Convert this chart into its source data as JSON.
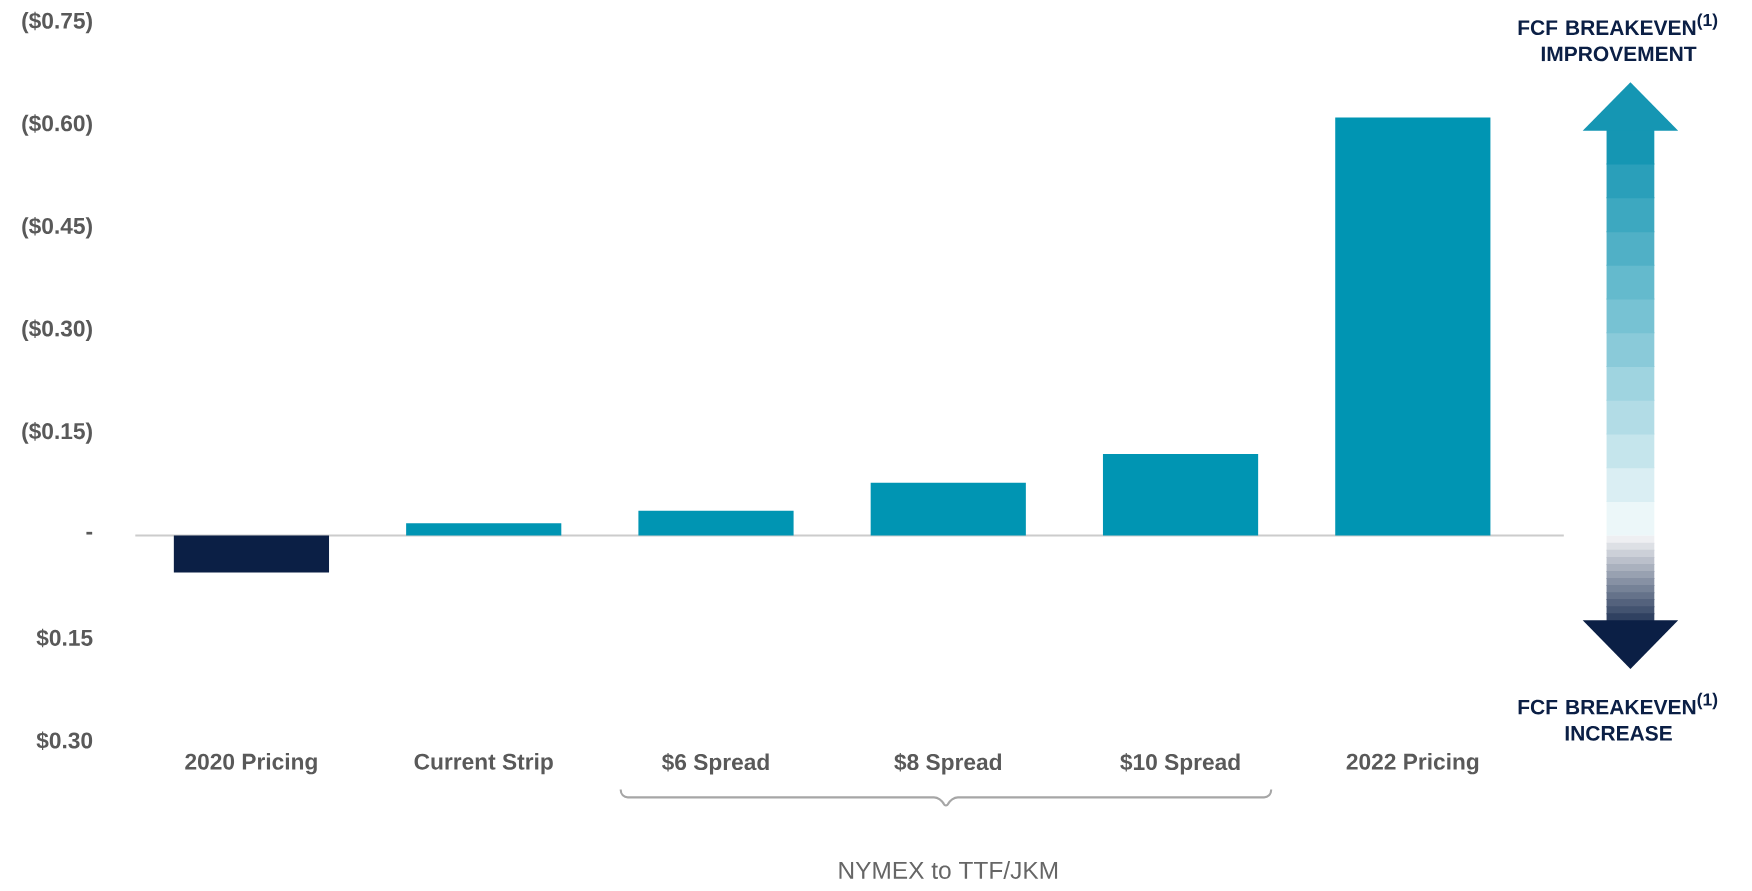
{
  "chart_data": {
    "type": "bar",
    "categories": [
      "2020 Pricing",
      "Current Strip",
      "$6 Spread",
      "$8 Spread",
      "$10 Spread",
      "2022 Pricing"
    ],
    "values": [
      0.054,
      -0.018,
      -0.036,
      -0.077,
      -0.119,
      -0.611
    ],
    "colors": [
      "#0b1f45",
      "#0095b3",
      "#0095b3",
      "#0095b3",
      "#0095b3",
      "#0095b3"
    ],
    "ylim": [
      0.3,
      -0.75
    ],
    "yticks": [
      {
        "value": -0.75,
        "label": "($0.75)"
      },
      {
        "value": -0.6,
        "label": "($0.60)"
      },
      {
        "value": -0.45,
        "label": "($0.45)"
      },
      {
        "value": -0.3,
        "label": "($0.30)"
      },
      {
        "value": -0.15,
        "label": "($0.15)"
      },
      {
        "value": 0,
        "label": "-"
      },
      {
        "value": 0.15,
        "label": "$0.15"
      },
      {
        "value": 0.3,
        "label": "$0.30"
      }
    ],
    "annotations": [
      "NYMEX to TTF/JKM",
      "FCF BREAKEVEN$^{(1)}$ IMPROVEMENT",
      "FCF BREAKEVEN$^{(1)}$ INCREASE"
    ]
  }
}
